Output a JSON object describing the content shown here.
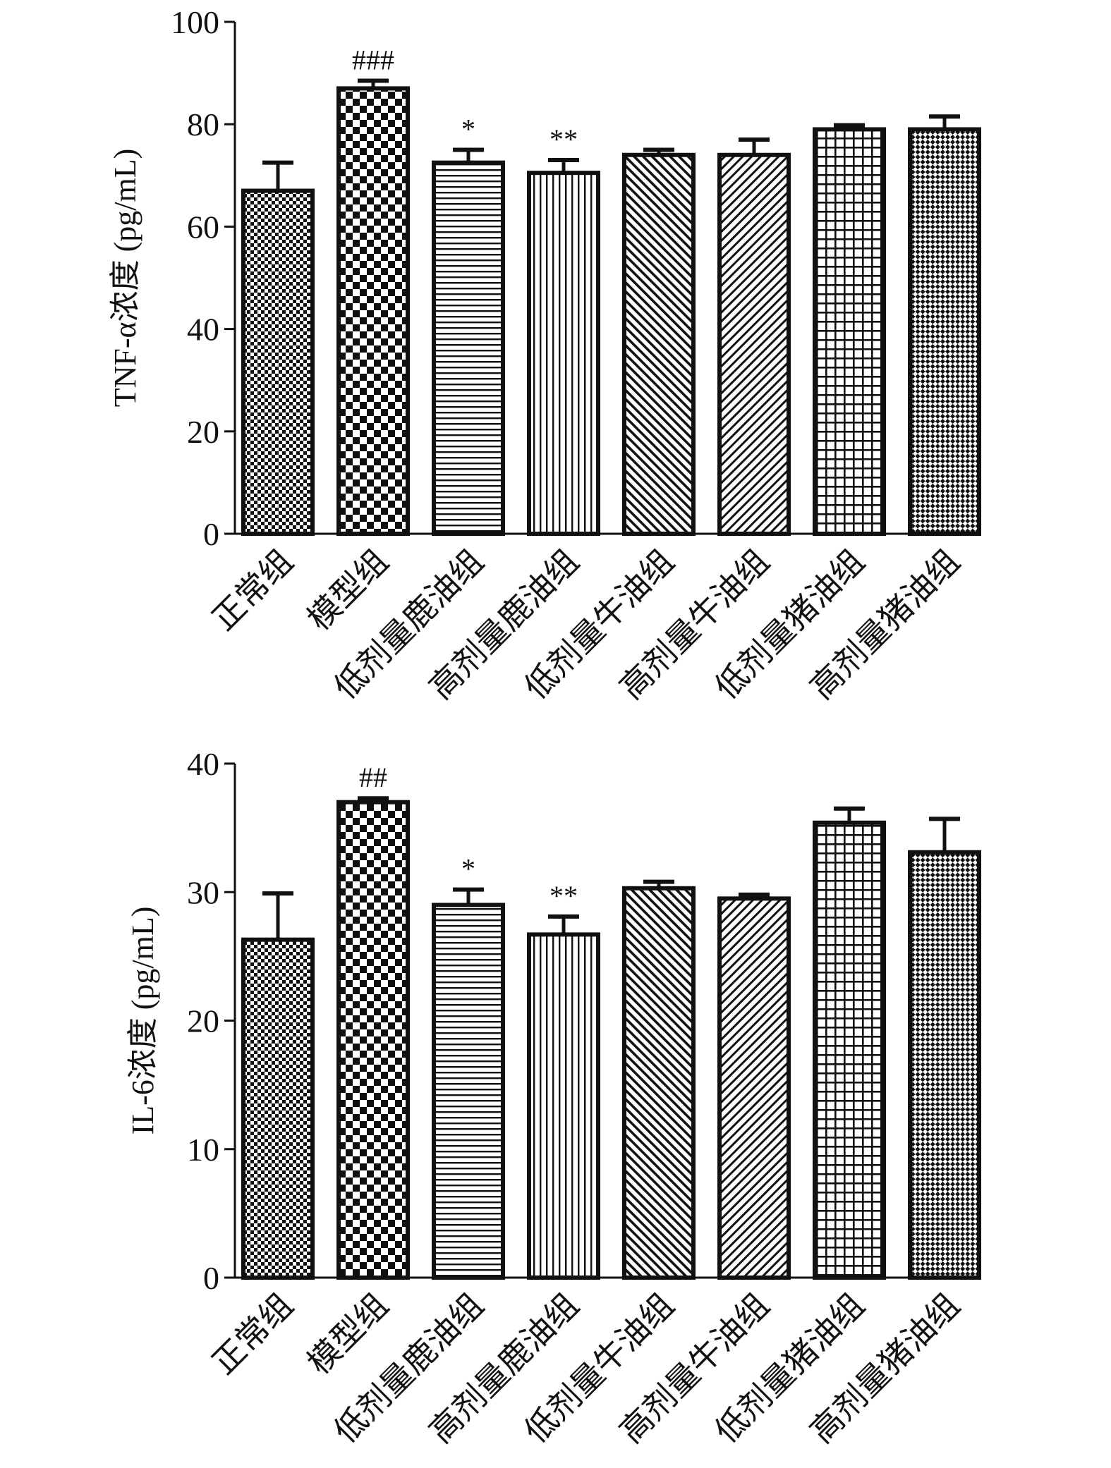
{
  "colors": {
    "ink": "#111111",
    "background": "#ffffff"
  },
  "chart_data": [
    {
      "type": "bar",
      "ylabel": "TNF-α浓度 (pg/mL)",
      "ylim": [
        0,
        100
      ],
      "yticks": [
        0,
        20,
        40,
        60,
        80,
        100
      ],
      "grid": false,
      "categories": [
        "正常组",
        "模型组",
        "低剂量鹿油组",
        "高剂量鹿油组",
        "低剂量牛油组",
        "高剂量牛油组",
        "低剂量猪油组",
        "高剂量猪油组"
      ],
      "values": [
        67,
        87,
        72.5,
        70.5,
        74,
        74,
        79,
        79
      ],
      "error_upper": [
        5.5,
        1.5,
        2.5,
        2.5,
        1,
        3,
        0.8,
        2.5
      ],
      "annotations": [
        "",
        "###",
        "*",
        "**",
        "",
        "",
        "",
        ""
      ],
      "patterns": [
        "checker-fine",
        "checker-large",
        "horizontal-lines",
        "vertical-lines",
        "diagonal-up",
        "diagonal-down",
        "grid",
        "crosshatch"
      ]
    },
    {
      "type": "bar",
      "ylabel": "IL-6浓度 (pg/mL)",
      "ylim": [
        0,
        40
      ],
      "yticks": [
        0,
        10,
        20,
        30,
        40
      ],
      "grid": false,
      "categories": [
        "正常组",
        "模型组",
        "低剂量鹿油组",
        "高剂量鹿油组",
        "低剂量牛油组",
        "高剂量牛油组",
        "低剂量猪油组",
        "高剂量猪油组"
      ],
      "values": [
        26.3,
        37,
        29,
        26.7,
        30.3,
        29.5,
        35.4,
        33.1
      ],
      "error_upper": [
        3.6,
        0.3,
        1.2,
        1.4,
        0.5,
        0.3,
        1.1,
        2.6
      ],
      "annotations": [
        "",
        "##",
        "*",
        "**",
        "",
        "",
        "",
        ""
      ],
      "patterns": [
        "checker-fine",
        "checker-large",
        "horizontal-lines",
        "vertical-lines",
        "diagonal-up",
        "diagonal-down",
        "grid",
        "crosshatch"
      ]
    }
  ]
}
